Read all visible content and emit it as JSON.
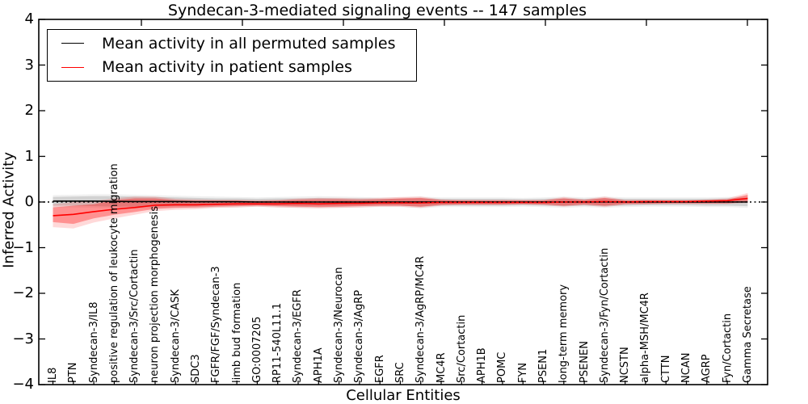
{
  "title": "Syndecan-3-mediated signaling events -- 147 samples",
  "legend": {
    "entries": [
      {
        "label": "Mean activity in all permuted samples",
        "color": "#000000"
      },
      {
        "label": "Mean activity in patient samples",
        "color": "#ff0000"
      }
    ]
  },
  "chart_data": {
    "type": "line",
    "title": "Syndecan-3-mediated signaling events -- 147 samples",
    "xlabel": "Cellular Entities",
    "ylabel": "Inferred Activity",
    "ylim": [
      -4,
      4
    ],
    "yticks": [
      4,
      3,
      2,
      1,
      0,
      -1,
      -2,
      -3,
      -4
    ],
    "grid": false,
    "legend_position": "upper left",
    "zero_line": 0,
    "categories": [
      "IL8",
      "PTN",
      "Syndecan-3/IL8",
      "positive regulation of leukocyte migration",
      "Syndecan-3/Src/Cortactin",
      "neuron projection morphogenesis",
      "Syndecan-3/CASK",
      "SDC3",
      "FGFR/FGF/Syndecan-3",
      "limb bud formation",
      "GO:0007205",
      "RP11-540L11.1",
      "Syndecan-3/EGFR",
      "APH1A",
      "Syndecan-3/Neurocan",
      "Syndecan-3/AgRP",
      "EGFR",
      "SRC",
      "Syndecan-3/AgRP/MC4R",
      "MC4R",
      "Src/Cortactin",
      "APH1B",
      "POMC",
      "FYN",
      "PSEN1",
      "long-term memory",
      "PSENEN",
      "Syndecan-3/Fyn/Cortactin",
      "NCSTN",
      "alpha-MSH/MC4R",
      "CTTN",
      "NCAN",
      "AGRP",
      "Fyn/Cortactin",
      "Gamma Secretase"
    ],
    "series": [
      {
        "name": "Mean activity in all permuted samples",
        "color": "#000000",
        "values": [
          0.02,
          0.02,
          0.02,
          0.015,
          0.01,
          0.01,
          0.01,
          0.005,
          0.005,
          0.005,
          0,
          0,
          0,
          0,
          0,
          0,
          0,
          0,
          0,
          0,
          0,
          0,
          0,
          0,
          0,
          0,
          0,
          0,
          0,
          0,
          0,
          0,
          0,
          0,
          0
        ]
      },
      {
        "name": "Mean activity in patient samples",
        "color": "#ff0000",
        "values": [
          -0.3,
          -0.27,
          -0.21,
          -0.16,
          -0.12,
          -0.07,
          -0.06,
          -0.06,
          -0.05,
          -0.04,
          -0.04,
          -0.04,
          -0.03,
          -0.04,
          -0.03,
          -0.03,
          -0.02,
          -0.02,
          -0.02,
          -0.01,
          -0.01,
          -0.01,
          -0.01,
          -0.01,
          -0.01,
          0,
          0,
          0.01,
          0,
          0.01,
          0.01,
          0.01,
          0.02,
          0.03,
          0.08
        ]
      }
    ],
    "bands": [
      {
        "name": "permuted-outer",
        "fill": "rgba(0,0,0,0.06)",
        "lo": [
          -0.12,
          -0.12,
          -0.13,
          -0.14,
          -0.14,
          -0.14,
          -0.13,
          -0.13,
          -0.12,
          -0.12,
          -0.1,
          -0.12,
          -0.13,
          -0.13,
          -0.13,
          -0.12,
          -0.11,
          -0.11,
          -0.14,
          -0.11,
          -0.11,
          -0.11,
          -0.11,
          -0.1,
          -0.11,
          -0.13,
          -0.11,
          -0.13,
          -0.11,
          -0.1,
          -0.1,
          -0.1,
          -0.11,
          -0.11,
          -0.13
        ],
        "hi": [
          0.15,
          0.16,
          0.17,
          0.17,
          0.16,
          0.15,
          0.14,
          0.13,
          0.12,
          0.11,
          0.1,
          0.11,
          0.12,
          0.13,
          0.12,
          0.11,
          0.1,
          0.1,
          0.12,
          0.1,
          0.1,
          0.1,
          0.1,
          0.09,
          0.1,
          0.12,
          0.1,
          0.12,
          0.1,
          0.1,
          0.1,
          0.1,
          0.1,
          0.11,
          0.13
        ]
      },
      {
        "name": "permuted-inner",
        "fill": "rgba(0,0,0,0.12)",
        "lo": [
          -0.08,
          -0.08,
          -0.09,
          -0.1,
          -0.1,
          -0.1,
          -0.09,
          -0.09,
          -0.08,
          -0.08,
          -0.07,
          -0.08,
          -0.09,
          -0.09,
          -0.09,
          -0.08,
          -0.08,
          -0.08,
          -0.1,
          -0.08,
          -0.08,
          -0.08,
          -0.08,
          -0.07,
          -0.08,
          -0.09,
          -0.08,
          -0.09,
          -0.08,
          -0.07,
          -0.07,
          -0.07,
          -0.08,
          -0.08,
          -0.09
        ],
        "hi": [
          0.11,
          0.12,
          0.13,
          0.13,
          0.12,
          0.11,
          0.1,
          0.09,
          0.08,
          0.08,
          0.07,
          0.08,
          0.08,
          0.09,
          0.08,
          0.08,
          0.07,
          0.07,
          0.08,
          0.07,
          0.07,
          0.07,
          0.07,
          0.06,
          0.07,
          0.08,
          0.07,
          0.08,
          0.07,
          0.07,
          0.07,
          0.07,
          0.07,
          0.08,
          0.09
        ]
      },
      {
        "name": "patient-outer",
        "fill": "rgba(255,0,0,0.15)",
        "lo": [
          -0.55,
          -0.58,
          -0.45,
          -0.36,
          -0.28,
          -0.2,
          -0.17,
          -0.16,
          -0.13,
          -0.12,
          -0.1,
          -0.12,
          -0.13,
          -0.14,
          -0.13,
          -0.12,
          -0.1,
          -0.1,
          -0.13,
          -0.08,
          -0.07,
          -0.07,
          -0.07,
          -0.06,
          -0.07,
          -0.1,
          -0.07,
          -0.11,
          -0.06,
          -0.05,
          -0.04,
          -0.04,
          -0.04,
          -0.04,
          -0.02
        ],
        "hi": [
          -0.05,
          0.0,
          0.02,
          0.08,
          0.12,
          0.12,
          0.07,
          0.06,
          0.05,
          0.05,
          0.04,
          0.05,
          0.08,
          0.09,
          0.09,
          0.08,
          0.09,
          0.11,
          0.12,
          0.06,
          0.05,
          0.05,
          0.05,
          0.05,
          0.05,
          0.11,
          0.06,
          0.12,
          0.05,
          0.05,
          0.04,
          0.04,
          0.06,
          0.08,
          0.2
        ]
      },
      {
        "name": "patient-inner",
        "fill": "rgba(255,0,0,0.33)",
        "lo": [
          -0.44,
          -0.48,
          -0.36,
          -0.28,
          -0.22,
          -0.15,
          -0.13,
          -0.12,
          -0.1,
          -0.09,
          -0.08,
          -0.09,
          -0.1,
          -0.11,
          -0.1,
          -0.09,
          -0.08,
          -0.08,
          -0.1,
          -0.06,
          -0.05,
          -0.05,
          -0.05,
          -0.04,
          -0.05,
          -0.08,
          -0.05,
          -0.08,
          -0.04,
          -0.04,
          -0.03,
          -0.03,
          -0.03,
          -0.03,
          0.0
        ],
        "hi": [
          -0.12,
          -0.08,
          -0.05,
          0.04,
          0.08,
          0.08,
          0.04,
          0.03,
          0.03,
          0.03,
          0.02,
          0.03,
          0.05,
          0.06,
          0.06,
          0.05,
          0.06,
          0.08,
          0.09,
          0.04,
          0.03,
          0.03,
          0.03,
          0.03,
          0.03,
          0.08,
          0.04,
          0.09,
          0.03,
          0.03,
          0.03,
          0.03,
          0.04,
          0.05,
          0.16
        ]
      }
    ]
  }
}
